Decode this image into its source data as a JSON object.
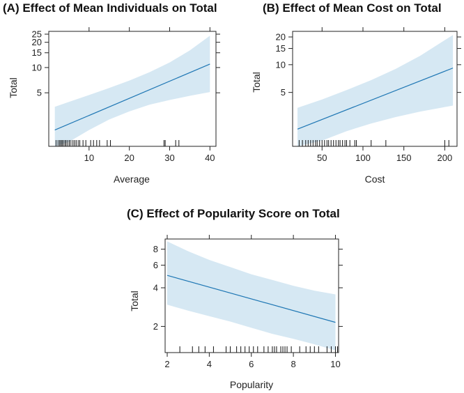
{
  "chart_data": [
    {
      "id": "A",
      "type": "line",
      "title": "(A) Effect of Mean Individuals on Total",
      "xlabel": "Average",
      "ylabel": "Total",
      "xlim": [
        0,
        41.5
      ],
      "ylim": [
        1.15,
        27
      ],
      "y_scale": "log",
      "x_ticks": [
        10,
        20,
        30,
        40
      ],
      "y_ticks": [
        5,
        10,
        15,
        20,
        25
      ],
      "fit": {
        "x": [
          1.5,
          40
        ],
        "y": [
          1.8,
          11
        ]
      },
      "ci_lower": {
        "x": [
          1.5,
          5,
          10,
          15,
          20,
          25,
          30,
          35,
          40
        ],
        "y": [
          1.0,
          1.3,
          1.8,
          2.4,
          3.0,
          3.6,
          4.1,
          4.6,
          5.1
        ]
      },
      "ci_upper": {
        "x": [
          1.5,
          5,
          10,
          15,
          20,
          25,
          30,
          35,
          40
        ],
        "y": [
          3.4,
          3.9,
          4.7,
          5.7,
          7.0,
          8.8,
          11.5,
          16.0,
          24.0
        ]
      },
      "rug": [
        1.8,
        2.3,
        2.7,
        3.0,
        3.3,
        3.6,
        4.0,
        4.3,
        4.7,
        5.1,
        5.5,
        6.0,
        6.4,
        6.8,
        7.3,
        7.7,
        8.5,
        9.2,
        10.4,
        11.1,
        11.9,
        12.6,
        14.5,
        15.3,
        28.6,
        28.9,
        31.5,
        32.3
      ]
    },
    {
      "id": "B",
      "type": "line",
      "title": "(B) Effect of Mean Cost on Total",
      "xlabel": "Cost",
      "ylabel": "Total",
      "xlim": [
        14,
        215
      ],
      "ylim": [
        1.3,
        23
      ],
      "y_scale": "log",
      "x_ticks": [
        50,
        100,
        150,
        200
      ],
      "y_ticks": [
        5,
        10,
        15,
        20
      ],
      "fit": {
        "x": [
          20,
          210
        ],
        "y": [
          2.0,
          9.2
        ]
      },
      "ci_lower": {
        "x": [
          20,
          50,
          80,
          110,
          140,
          170,
          210
        ],
        "y": [
          1.15,
          1.5,
          1.9,
          2.3,
          2.7,
          3.1,
          3.6
        ]
      },
      "ci_upper": {
        "x": [
          20,
          50,
          80,
          110,
          140,
          170,
          210
        ],
        "y": [
          3.4,
          4.2,
          5.3,
          6.8,
          9.0,
          12.5,
          21.0
        ]
      },
      "rug": [
        22,
        26,
        30,
        33,
        36,
        39,
        42,
        44,
        47,
        50,
        53,
        56,
        58,
        61,
        64,
        67,
        70,
        72,
        75,
        78,
        80,
        84,
        90,
        92,
        110,
        128,
        200,
        205
      ]
    },
    {
      "id": "C",
      "type": "line",
      "title": "(C) Effect of  Popularity Score on Total",
      "xlabel": "Popularity",
      "ylabel": "Total",
      "xlim": [
        1.9,
        10.15
      ],
      "ylim": [
        1.25,
        9.6
      ],
      "y_scale": "log",
      "x_ticks": [
        2,
        4,
        6,
        8,
        10
      ],
      "y_ticks": [
        2,
        4,
        6,
        8
      ],
      "fit": {
        "x": [
          2,
          10
        ],
        "y": [
          5.0,
          2.15
        ]
      },
      "ci_lower": {
        "x": [
          2,
          3,
          4,
          5,
          6,
          7,
          8,
          9,
          10
        ],
        "y": [
          2.95,
          2.65,
          2.4,
          2.18,
          1.95,
          1.75,
          1.6,
          1.45,
          1.3
        ]
      },
      "ci_upper": {
        "x": [
          2,
          3,
          4,
          5,
          6,
          7,
          8,
          9,
          10
        ],
        "y": [
          9.2,
          7.7,
          6.6,
          5.8,
          5.1,
          4.6,
          4.15,
          3.8,
          3.55
        ]
      },
      "rug": [
        2.6,
        3.2,
        3.5,
        3.8,
        4.2,
        4.8,
        5.0,
        5.3,
        5.5,
        5.7,
        5.9,
        6.1,
        6.3,
        6.6,
        6.8,
        7.0,
        7.1,
        7.2,
        7.4,
        7.5,
        7.6,
        7.7,
        7.9,
        8.3,
        8.6,
        8.8,
        9.0,
        9.2,
        9.6,
        9.8,
        10.0,
        10.1
      ]
    }
  ]
}
